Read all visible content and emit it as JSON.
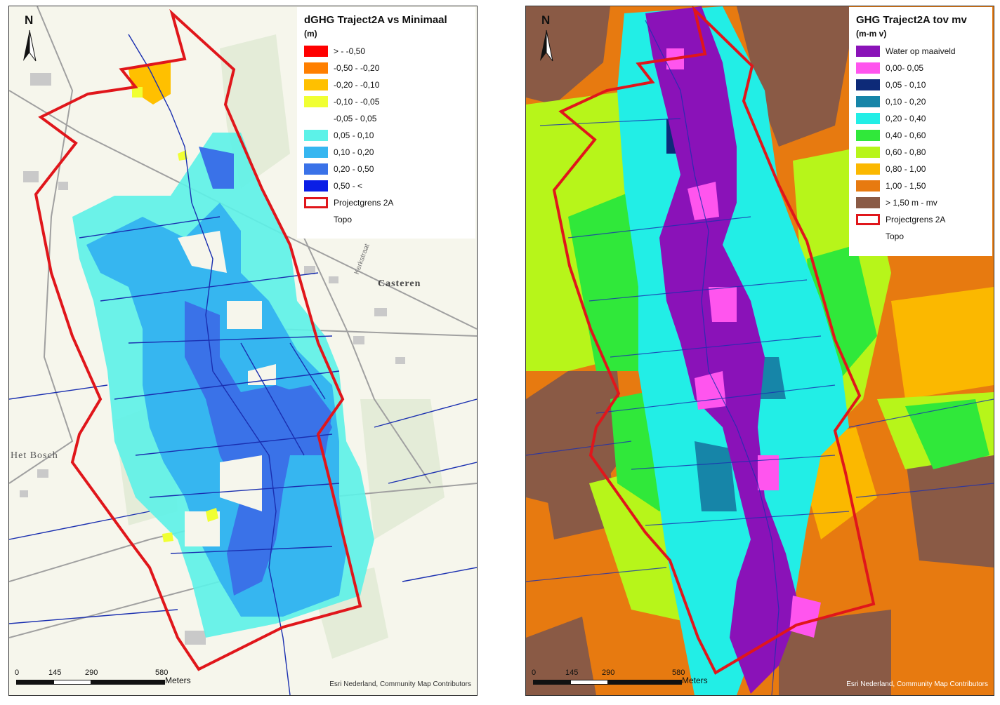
{
  "left_map": {
    "legend": {
      "title": "dGHG Traject2A vs Minimaal",
      "unit": "(m)",
      "items": [
        {
          "label": "> - -0,50",
          "color": "#ff0000"
        },
        {
          "label": "-0,50 - -0,20",
          "color": "#ff7f00"
        },
        {
          "label": "-0,20 - -0,10",
          "color": "#ffc000"
        },
        {
          "label": "-0,10 - -0,05",
          "color": "#f0ff33"
        },
        {
          "label": "-0,05 - 0,05",
          "color": "#ffffff"
        },
        {
          "label": "0,05 - 0,10",
          "color": "#5cf2e8"
        },
        {
          "label": "0,10 - 0,20",
          "color": "#36b6f0"
        },
        {
          "label": "0,20 - 0,50",
          "color": "#3a72e8"
        },
        {
          "label": "0,50 - <",
          "color": "#0a1ee6"
        }
      ],
      "boundary_label": "Projectgrens 2A",
      "topo_label": "Topo"
    },
    "north_label": "N",
    "places": {
      "casteren": "Casteren",
      "het_bosch": "Het Bosch",
      "kerkstraat": "Kerkstraat"
    },
    "scale": {
      "ticks": [
        "0",
        "145",
        "290",
        "580"
      ],
      "unit": "Meters"
    },
    "attribution": "Esri Nederland, Community Map Contributors"
  },
  "right_map": {
    "legend": {
      "title": "GHG Traject2A tov mv",
      "unit": "(m-m v)",
      "items": [
        {
          "label": "Water op maaiveld",
          "color": "#8a12b8"
        },
        {
          "label": "0,00- 0,05",
          "color": "#ff55ee"
        },
        {
          "label": "0,05 - 0,10",
          "color": "#0d2a78"
        },
        {
          "label": "0,10 - 0,20",
          "color": "#1685a8"
        },
        {
          "label": "0,20 - 0,40",
          "color": "#22eee6"
        },
        {
          "label": "0,40 - 0,60",
          "color": "#30e83a"
        },
        {
          "label": "0,60 - 0,80",
          "color": "#b7f51a"
        },
        {
          "label": "0,80 - 1,00",
          "color": "#fbb800"
        },
        {
          "label": "1,00 - 1,50",
          "color": "#e77a10"
        },
        {
          "label": "> 1,50 m - mv",
          "color": "#8a5a45"
        }
      ],
      "boundary_label": "Projectgrens 2A",
      "topo_label": "Topo"
    },
    "north_label": "N",
    "scale": {
      "ticks": [
        "0",
        "145",
        "290",
        "580"
      ],
      "unit": "Meters"
    },
    "attribution": "Esri Nederland, Community Map Contributors"
  },
  "colors": {
    "boundary": "#e0161b",
    "water_line": "#1a2fb0",
    "base_map": "#f5f5ea",
    "road": "#9a9a9a"
  }
}
